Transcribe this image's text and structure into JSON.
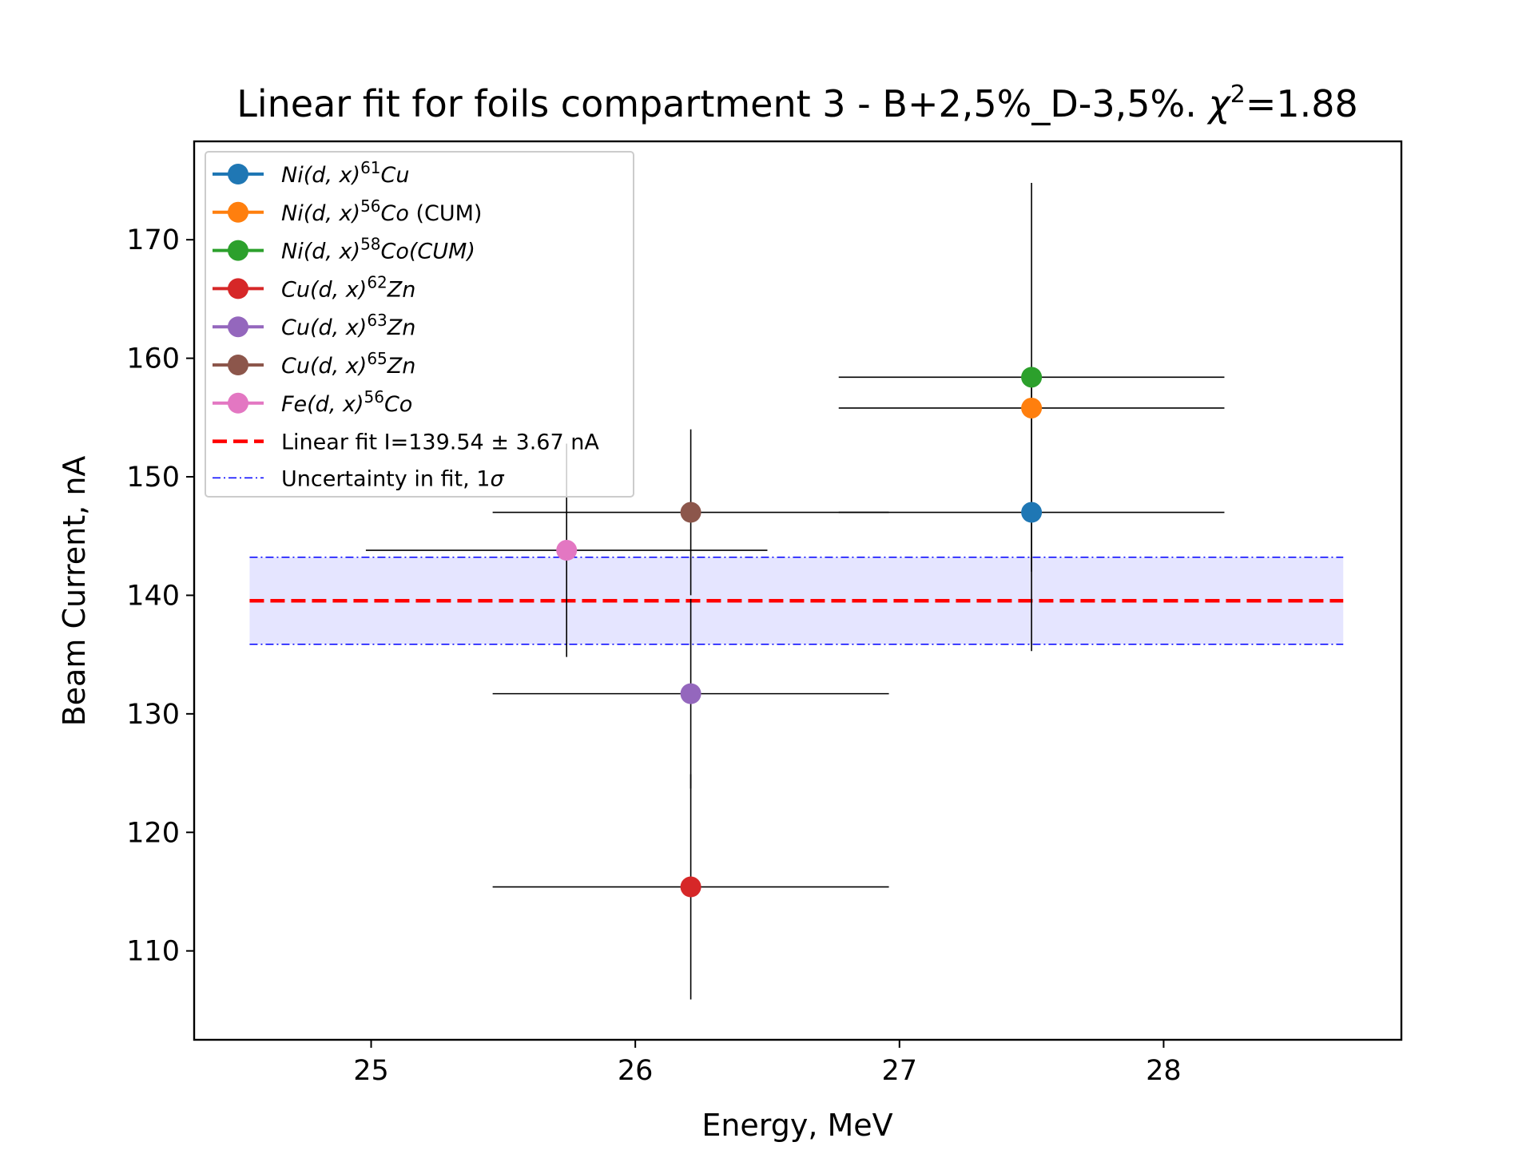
{
  "chart_data": {
    "type": "scatter",
    "title": "Linear fit for foils compartment 3 - B+2,5%_D-3,5%. χ²=1.88",
    "title_parts": {
      "main": "Linear fit for foils compartment 3 - B+2,5%_D-3,5%. ",
      "chi": "χ",
      "sup": "2",
      "value": "=1.88"
    },
    "xlabel": "Energy, MeV",
    "ylabel": "Beam Current, nA",
    "xlim": [
      24.33,
      28.9
    ],
    "ylim": [
      102.5,
      178.3
    ],
    "xticks": [
      25,
      26,
      27,
      28
    ],
    "yticks": [
      110,
      120,
      130,
      140,
      150,
      160,
      170
    ],
    "grid": false,
    "legend_position": "upper-left",
    "series": [
      {
        "name": "Ni(d,x)⁶¹Cu",
        "label": {
          "a": "Ni(d, x)",
          "sup": "61",
          "b": "Cu",
          "c": ""
        },
        "color": "#1f77b4",
        "x": 27.5,
        "y": 147.0,
        "xerr": 0.73,
        "yerr": 11.7
      },
      {
        "name": "Ni(d,x)⁵⁶Co (CUM)",
        "label": {
          "a": "Ni(d, x)",
          "sup": "56",
          "b": "Co",
          "c": " (CUM)"
        },
        "color": "#ff7f0e",
        "x": 27.5,
        "y": 155.8,
        "xerr": 0.73,
        "yerr": 0
      },
      {
        "name": "Ni(d,x)⁵⁸Co(CUM)",
        "label": {
          "a": "Ni(d, x)",
          "sup": "58",
          "b": "Co(CUM)",
          "c": ""
        },
        "color": "#2ca02c",
        "x": 27.5,
        "y": 158.4,
        "xerr": 0.73,
        "yerr": 16.4
      },
      {
        "name": "Cu(d,x)⁶²Zn",
        "label": {
          "a": "Cu(d, x)",
          "sup": "62",
          "b": "Zn",
          "c": ""
        },
        "color": "#d62728",
        "x": 26.21,
        "y": 115.4,
        "xerr": 0.75,
        "yerr": 9.5
      },
      {
        "name": "Cu(d,x)⁶³Zn",
        "label": {
          "a": "Cu(d, x)",
          "sup": "63",
          "b": "Zn",
          "c": ""
        },
        "color": "#9467bd",
        "x": 26.21,
        "y": 131.7,
        "xerr": 0.75,
        "yerr": 8.0
      },
      {
        "name": "Cu(d,x)⁶⁵Zn",
        "label": {
          "a": "Cu(d, x)",
          "sup": "65",
          "b": "Zn",
          "c": ""
        },
        "color": "#8c564b",
        "x": 26.21,
        "y": 147.0,
        "xerr": 0.75,
        "yerr": 7.0
      },
      {
        "name": "Fe(d,x)⁵⁶Co",
        "label": {
          "a": "Fe(d, x)",
          "sup": "56",
          "b": "Co",
          "c": ""
        },
        "color": "#e377c2",
        "x": 25.74,
        "y": 143.8,
        "xerr": 0.76,
        "yerr": 9.0
      }
    ],
    "fit": {
      "label": "Linear fit I=139.54 ± 3.67 nA",
      "value": 139.54,
      "uncertainty": 3.67,
      "color": "#ff0000",
      "x_range": [
        24.54,
        28.68
      ]
    },
    "band": {
      "label_main": "Uncertainty in fit, 1",
      "label_sigma": "σ",
      "lower": 135.87,
      "upper": 143.21,
      "color": "#0000ff"
    }
  }
}
